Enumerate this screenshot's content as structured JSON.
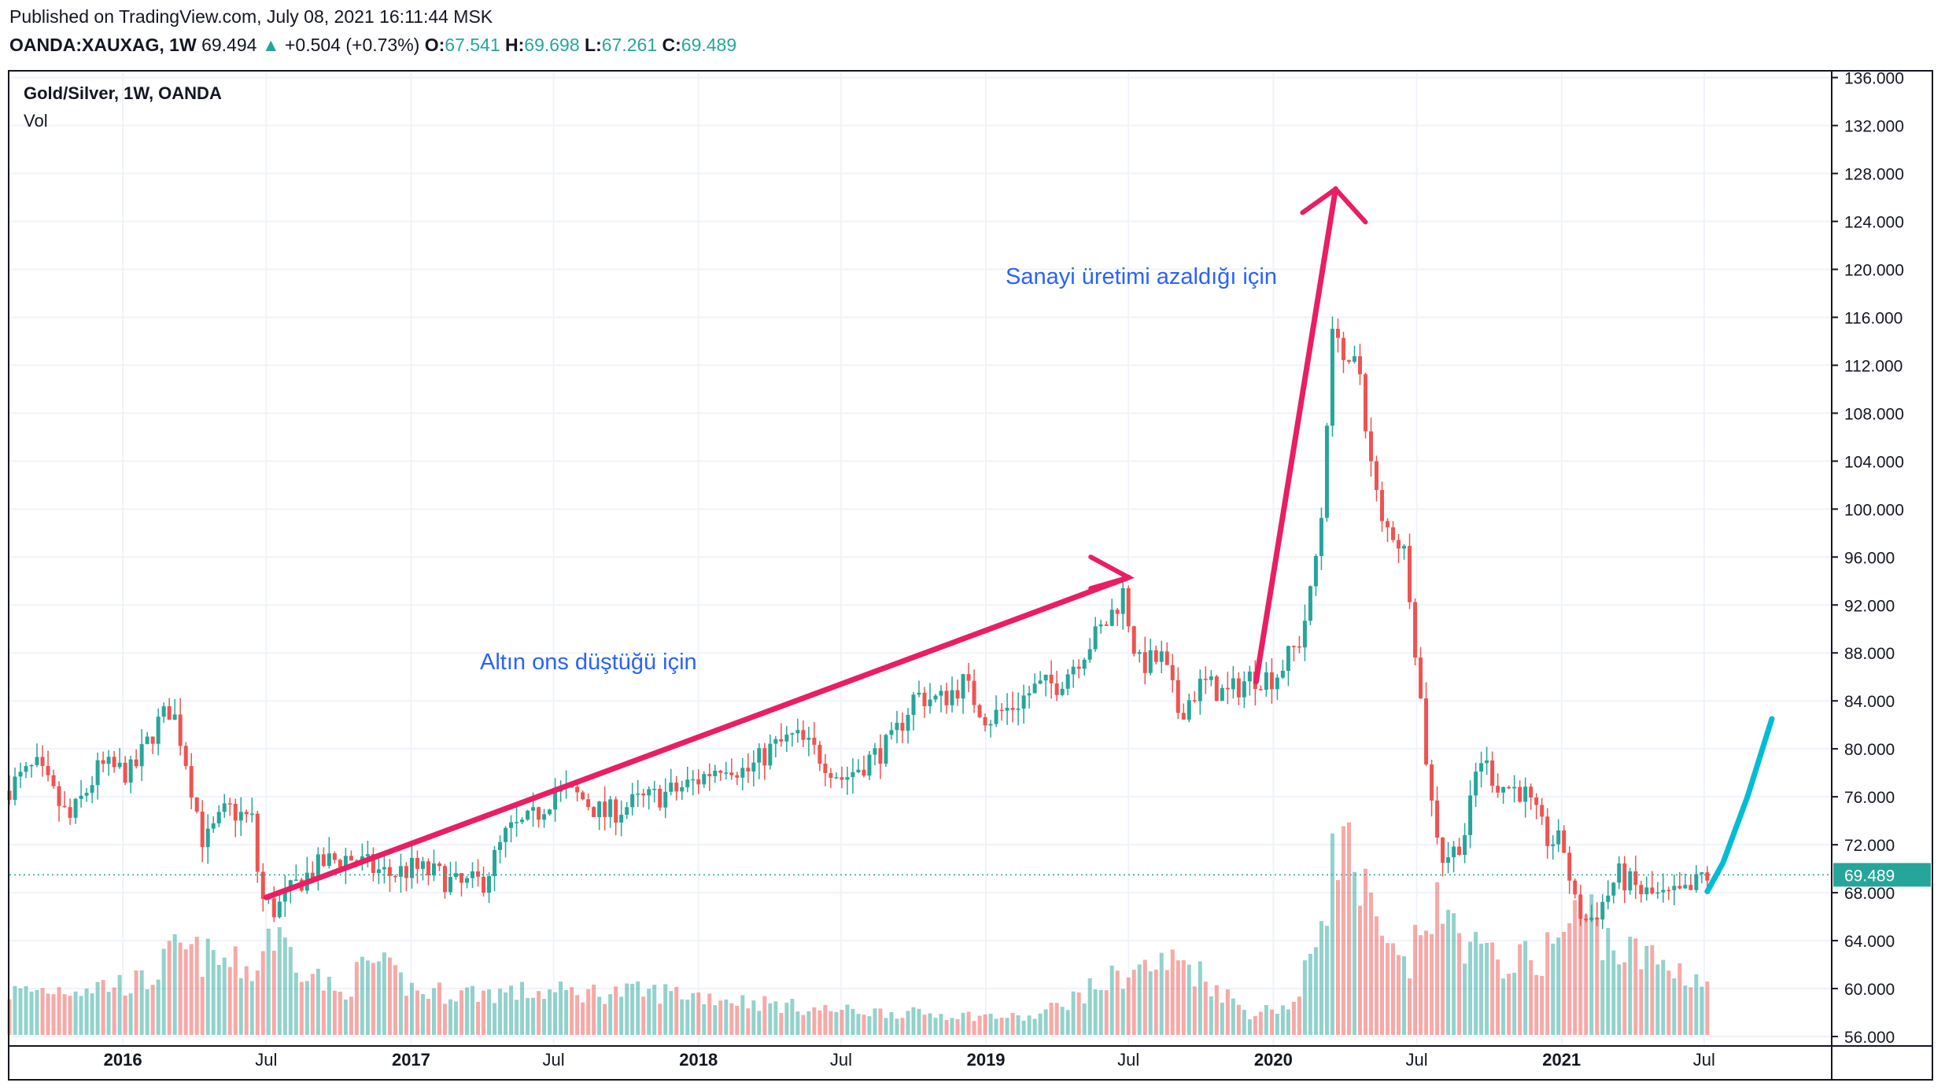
{
  "header": {
    "published": "Published on TradingView.com, July 08, 2021 16:11:44 MSK",
    "symbol": "OANDA:XAUXAG, 1W",
    "last": "69.494",
    "change_arrow": "▲",
    "change": "+0.504 (+0.73%)",
    "open_label": "O:",
    "open": "67.541",
    "high_label": "H:",
    "high": "69.698",
    "low_label": "L:",
    "low": "67.261",
    "close_label": "C:",
    "close": "69.489"
  },
  "legend": {
    "title": "Gold/Silver, 1W, OANDA",
    "volume": "Vol"
  },
  "annotations": {
    "first": "Altın ons düştüğü için",
    "second": "Sanayi üretimi azaldığı için"
  },
  "colors": {
    "up": "#26a69a",
    "down": "#ef5350",
    "arrow": "#e91e63",
    "projection": "#00bcd4",
    "grid": "#f0f3fa",
    "price_tag": "#26a69a"
  },
  "chart_data": {
    "type": "candlestick",
    "symbol": "OANDA:XAUXAG",
    "interval": "1W",
    "y_ticks": [
      "56.000",
      "60.000",
      "64.000",
      "68.000",
      "72.000",
      "76.000",
      "80.000",
      "84.000",
      "88.000",
      "92.000",
      "96.000",
      "100.000",
      "104.000",
      "108.000",
      "112.000",
      "116.000",
      "120.000",
      "124.000",
      "128.000",
      "132.000",
      "136.000"
    ],
    "ylim": [
      56,
      136.5
    ],
    "x_tick_labels": [
      {
        "label": "2016",
        "date": "2016-01-01",
        "bold": true
      },
      {
        "label": "Jul",
        "date": "2016-07-01",
        "bold": false
      },
      {
        "label": "2017",
        "date": "2017-01-01",
        "bold": true
      },
      {
        "label": "Jul",
        "date": "2017-07-01",
        "bold": false
      },
      {
        "label": "2018",
        "date": "2018-01-01",
        "bold": true
      },
      {
        "label": "Jul",
        "date": "2018-07-01",
        "bold": false
      },
      {
        "label": "2019",
        "date": "2019-01-01",
        "bold": true
      },
      {
        "label": "Jul",
        "date": "2019-07-01",
        "bold": false
      },
      {
        "label": "2020",
        "date": "2020-01-01",
        "bold": true
      },
      {
        "label": "Jul",
        "date": "2020-07-01",
        "bold": false
      },
      {
        "label": "2021",
        "date": "2021-01-01",
        "bold": true
      },
      {
        "label": "Jul",
        "date": "2021-07-01",
        "bold": false
      }
    ],
    "xlim": [
      "2015-08-10",
      "2021-12-10"
    ],
    "last_price_label": "69.489",
    "last_price": 69.489,
    "anchors": [
      [
        "2015-08-10",
        76.5
      ],
      [
        "2015-09-20",
        78.5
      ],
      [
        "2015-11-01",
        74.0
      ],
      [
        "2015-12-10",
        78.5
      ],
      [
        "2016-01-20",
        78.0
      ],
      [
        "2016-02-20",
        82.0
      ],
      [
        "2016-03-10",
        83.5
      ],
      [
        "2016-03-25",
        80.0
      ],
      [
        "2016-04-20",
        72.0
      ],
      [
        "2016-05-20",
        75.0
      ],
      [
        "2016-06-20",
        74.0
      ],
      [
        "2016-07-01",
        67.5
      ],
      [
        "2016-07-20",
        66.5
      ],
      [
        "2016-08-20",
        69.0
      ],
      [
        "2016-09-20",
        70.5
      ],
      [
        "2016-10-20",
        71.0
      ],
      [
        "2016-11-20",
        70.0
      ],
      [
        "2016-12-10",
        69.5
      ],
      [
        "2017-01-10",
        70.0
      ],
      [
        "2017-02-10",
        69.5
      ],
      [
        "2017-03-10",
        68.5
      ],
      [
        "2017-04-10",
        69.0
      ],
      [
        "2017-05-10",
        73.0
      ],
      [
        "2017-06-10",
        74.0
      ],
      [
        "2017-07-10",
        76.5
      ],
      [
        "2017-08-10",
        76.0
      ],
      [
        "2017-09-10",
        74.5
      ],
      [
        "2017-10-20",
        75.5
      ],
      [
        "2017-12-10",
        76.5
      ],
      [
        "2018-01-10",
        77.5
      ],
      [
        "2018-02-10",
        79.0
      ],
      [
        "2018-03-10",
        78.0
      ],
      [
        "2018-04-10",
        80.0
      ],
      [
        "2018-05-10",
        81.0
      ],
      [
        "2018-06-10",
        79.5
      ],
      [
        "2018-07-10",
        77.5
      ],
      [
        "2018-08-10",
        79.0
      ],
      [
        "2018-09-10",
        80.5
      ],
      [
        "2018-10-10",
        84.5
      ],
      [
        "2018-11-10",
        84.0
      ],
      [
        "2018-12-10",
        85.5
      ],
      [
        "2019-01-10",
        82.5
      ],
      [
        "2019-02-10",
        83.5
      ],
      [
        "2019-03-10",
        85.0
      ],
      [
        "2019-04-10",
        85.5
      ],
      [
        "2019-05-10",
        88.0
      ],
      [
        "2019-06-10",
        90.5
      ],
      [
        "2019-07-01",
        93.0
      ],
      [
        "2019-07-20",
        87.0
      ],
      [
        "2019-08-20",
        87.5
      ],
      [
        "2019-09-10",
        83.0
      ],
      [
        "2019-10-10",
        85.5
      ],
      [
        "2019-11-10",
        84.5
      ],
      [
        "2019-12-10",
        86.0
      ],
      [
        "2020-01-10",
        86.0
      ],
      [
        "2020-02-10",
        89.0
      ],
      [
        "2020-02-25",
        93.0
      ],
      [
        "2020-03-10",
        100.0
      ],
      [
        "2020-03-20",
        113.0
      ],
      [
        "2020-03-28",
        116.0
      ],
      [
        "2020-04-10",
        111.0
      ],
      [
        "2020-04-25",
        112.5
      ],
      [
        "2020-05-10",
        104.0
      ],
      [
        "2020-05-25",
        98.5
      ],
      [
        "2020-06-10",
        98.0
      ],
      [
        "2020-06-25",
        96.0
      ],
      [
        "2020-07-10",
        86.0
      ],
      [
        "2020-07-25",
        76.0
      ],
      [
        "2020-08-10",
        71.0
      ],
      [
        "2020-08-25",
        71.5
      ],
      [
        "2020-09-10",
        73.5
      ],
      [
        "2020-09-25",
        79.5
      ],
      [
        "2020-10-20",
        77.0
      ],
      [
        "2020-11-20",
        76.5
      ],
      [
        "2020-12-20",
        72.5
      ],
      [
        "2021-01-10",
        72.0
      ],
      [
        "2021-01-25",
        67.0
      ],
      [
        "2021-02-10",
        65.5
      ],
      [
        "2021-03-05",
        67.5
      ],
      [
        "2021-03-20",
        69.5
      ],
      [
        "2021-04-20",
        68.0
      ],
      [
        "2021-05-20",
        67.5
      ],
      [
        "2021-06-20",
        68.0
      ],
      [
        "2021-07-05",
        69.4
      ]
    ],
    "volume_levels": [
      [
        "2015-08-10",
        0.2
      ],
      [
        "2016-02-01",
        0.25
      ],
      [
        "2016-03-10",
        0.4
      ],
      [
        "2016-06-20",
        0.3
      ],
      [
        "2016-07-01",
        0.5
      ],
      [
        "2016-10-01",
        0.18
      ],
      [
        "2016-11-10",
        0.35
      ],
      [
        "2017-01-10",
        0.2
      ],
      [
        "2017-12-01",
        0.2
      ],
      [
        "2018-06-01",
        0.12
      ],
      [
        "2019-03-01",
        0.08
      ],
      [
        "2019-07-01",
        0.3
      ],
      [
        "2019-09-10",
        0.35
      ],
      [
        "2019-12-01",
        0.1
      ],
      [
        "2020-02-01",
        0.15
      ],
      [
        "2020-03-10",
        0.7
      ],
      [
        "2020-03-25",
        0.95
      ],
      [
        "2020-04-20",
        0.7
      ],
      [
        "2020-05-20",
        0.4
      ],
      [
        "2020-06-20",
        0.3
      ],
      [
        "2020-07-15",
        0.6
      ],
      [
        "2020-08-20",
        0.5
      ],
      [
        "2020-10-01",
        0.35
      ],
      [
        "2020-12-01",
        0.35
      ],
      [
        "2021-02-01",
        0.6
      ],
      [
        "2021-03-10",
        0.4
      ],
      [
        "2021-05-01",
        0.35
      ],
      [
        "2021-07-05",
        0.25
      ]
    ],
    "overlays": {
      "arrow1": {
        "from": [
          "2016-07-01",
          67.6
        ],
        "to": [
          "2019-07-01",
          94.3
        ]
      },
      "arrow2": {
        "from": [
          "2019-12-10",
          85.6
        ],
        "to": [
          "2020-03-20",
          126.7
        ]
      },
      "projection": [
        [
          "2021-07-05",
          68.1
        ],
        [
          "2021-07-25",
          70.5
        ],
        [
          "2021-08-25",
          76.0
        ],
        [
          "2021-09-25",
          82.5
        ]
      ]
    }
  }
}
